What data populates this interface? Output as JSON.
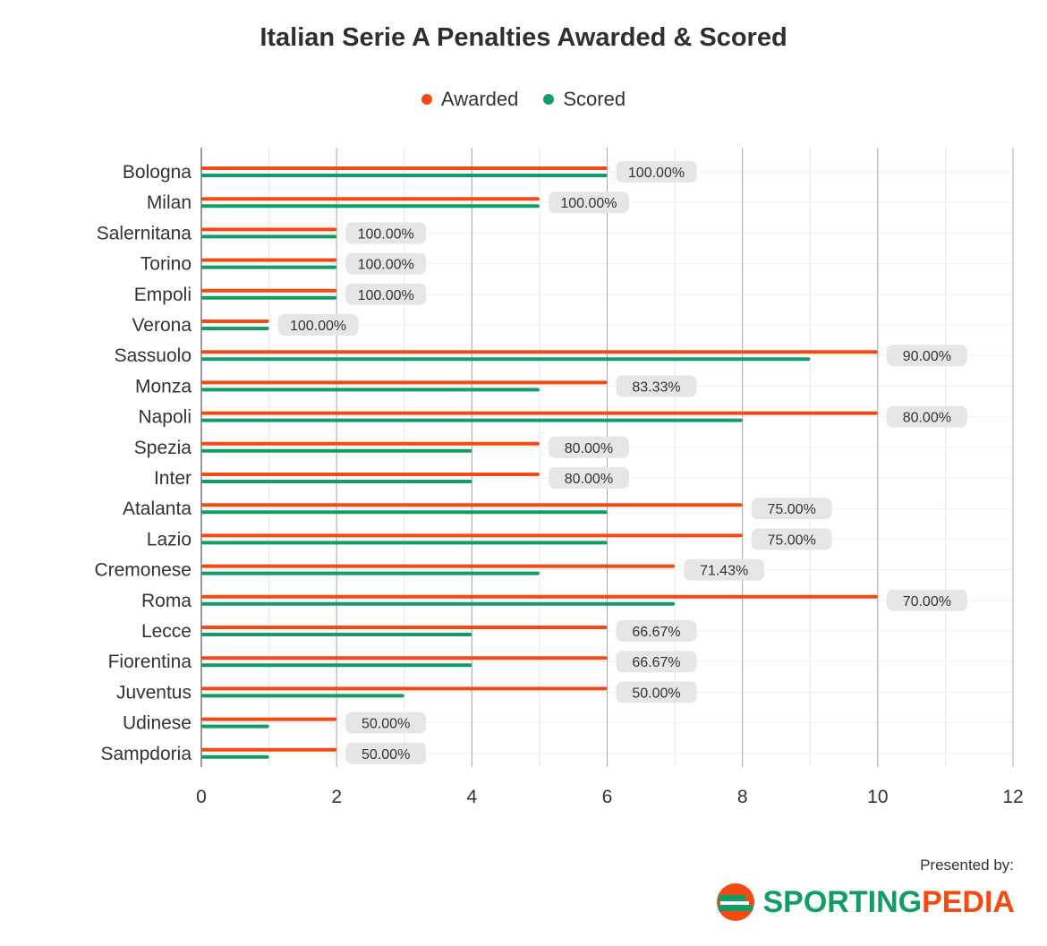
{
  "chart_data": {
    "type": "bar",
    "orientation": "horizontal",
    "title": "Italian Serie A Penalties Awarded & Scored",
    "categories": [
      "Bologna",
      "Milan",
      "Salernitana",
      "Torino",
      "Empoli",
      "Verona",
      "Sassuolo",
      "Monza",
      "Napoli",
      "Spezia",
      "Inter",
      "Atalanta",
      "Lazio",
      "Cremonese",
      "Roma",
      "Lecce",
      "Fiorentina",
      "Juventus",
      "Udinese",
      "Sampdoria"
    ],
    "series": [
      {
        "name": "Awarded",
        "color": "#f24a12",
        "values": [
          6,
          5,
          2,
          2,
          2,
          1,
          10,
          6,
          10,
          5,
          5,
          8,
          8,
          7,
          10,
          6,
          6,
          6,
          2,
          2
        ]
      },
      {
        "name": "Scored",
        "color": "#139d66",
        "values": [
          6,
          5,
          2,
          2,
          2,
          1,
          9,
          5,
          8,
          4,
          4,
          6,
          6,
          5,
          7,
          4,
          4,
          3,
          1,
          1
        ]
      }
    ],
    "data_labels": [
      "100.00%",
      "100.00%",
      "100.00%",
      "100.00%",
      "100.00%",
      "100.00%",
      "90.00%",
      "83.33%",
      "80.00%",
      "80.00%",
      "80.00%",
      "75.00%",
      "75.00%",
      "71.43%",
      "70.00%",
      "66.67%",
      "66.67%",
      "50.00%",
      "50.00%",
      "50.00%"
    ],
    "xlim": [
      0,
      12
    ],
    "xticks": [
      "0",
      "2",
      "4",
      "6",
      "8",
      "10",
      "12"
    ],
    "xlabel": "",
    "ylabel": "",
    "legend_position": "top-center",
    "grid": true
  },
  "footer": {
    "presented_by": "Presented by:",
    "logo_text_part1": "SPORTING",
    "logo_text_part2": "PEDIA",
    "logo_icon": "sportingpedia-s-icon"
  }
}
